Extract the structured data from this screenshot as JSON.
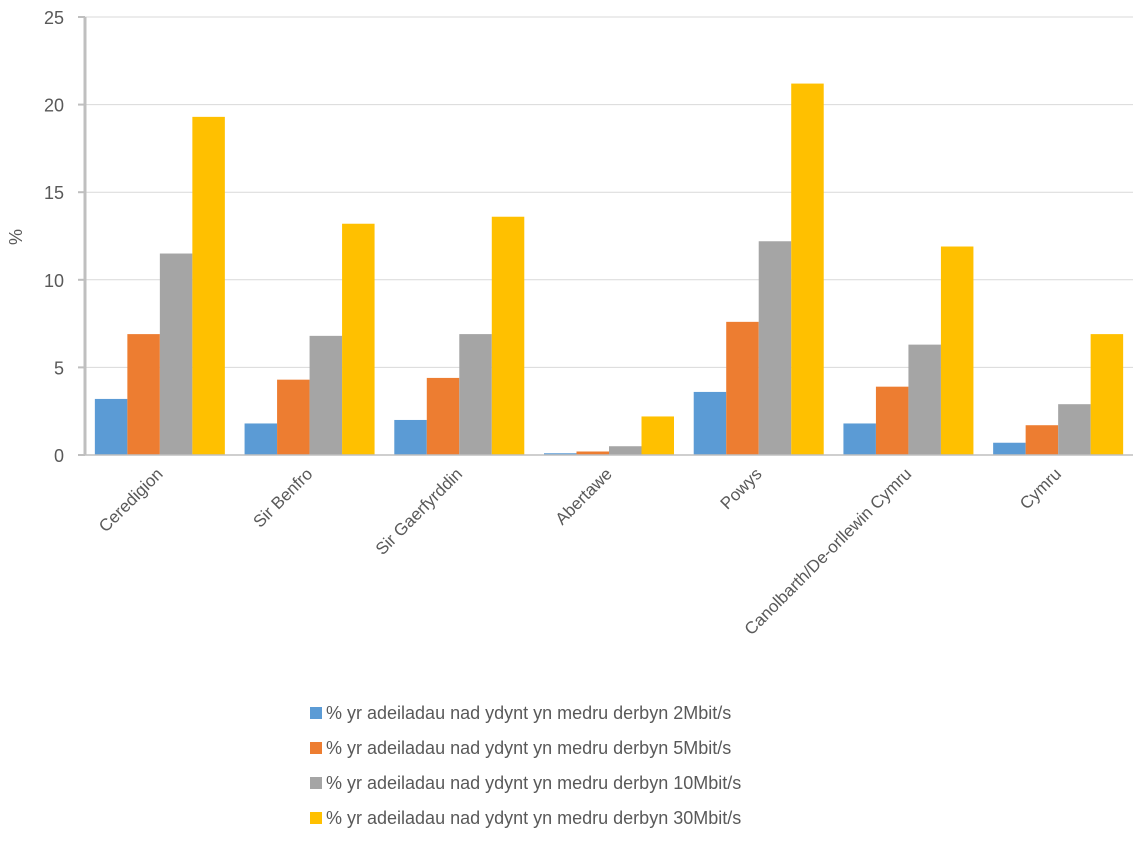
{
  "chart_data": {
    "type": "bar",
    "title": "",
    "xlabel": "",
    "ylabel": "%",
    "ylim": [
      0,
      25
    ],
    "yticks": [
      0,
      5,
      10,
      15,
      20,
      25
    ],
    "grid": true,
    "legend_position": "bottom",
    "categories": [
      "Ceredigion",
      "Sir Benfro",
      "Sir Gaerfyrddin",
      "Abertawe",
      "Powys",
      "Canolbarth/De-orllewin Cymru",
      "Cymru"
    ],
    "series": [
      {
        "name": "% yr adeiladau nad ydynt yn medru derbyn 2Mbit/s",
        "color": "#5B9BD5",
        "values": [
          3.2,
          1.8,
          2.0,
          0.1,
          3.6,
          1.8,
          0.7
        ]
      },
      {
        "name": "% yr adeiladau nad ydynt yn medru derbyn 5Mbit/s",
        "color": "#ED7D31",
        "values": [
          6.9,
          4.3,
          4.4,
          0.2,
          7.6,
          3.9,
          1.7
        ]
      },
      {
        "name": "% yr adeiladau nad ydynt yn medru derbyn 10Mbit/s",
        "color": "#A5A5A5",
        "values": [
          11.5,
          6.8,
          6.9,
          0.5,
          12.2,
          6.3,
          2.9
        ]
      },
      {
        "name": "% yr adeiladau nad ydynt yn medru derbyn 30Mbit/s",
        "color": "#FFC000",
        "values": [
          19.3,
          13.2,
          13.6,
          2.2,
          21.2,
          11.9,
          6.9
        ]
      }
    ]
  }
}
